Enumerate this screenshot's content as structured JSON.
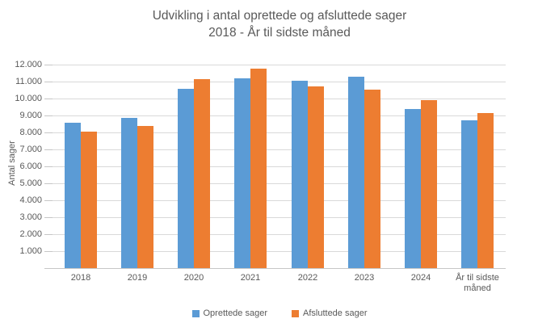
{
  "title": {
    "line1": "Udvikling i antal oprettede og afsluttede sager",
    "line2": "2018 - År til sidste måned"
  },
  "colors": {
    "series_blue": "#5B9BD5",
    "series_orange": "#ED7D31",
    "gridline": "#D9D9D9",
    "axis_line": "#C6C6C6",
    "text": "#595959"
  },
  "chart_data": {
    "type": "bar",
    "title": "Udvikling i antal oprettede og afsluttede sager 2018 - År til sidste måned",
    "categories": [
      "2018",
      "2019",
      "2020",
      "2021",
      "2022",
      "2023",
      "2024",
      "År til sidste måned"
    ],
    "series": [
      {
        "name": "Oprettede sager",
        "color": "#5B9BD5",
        "values": [
          8550,
          8850,
          10550,
          11200,
          11050,
          11300,
          9400,
          8700
        ]
      },
      {
        "name": "Afsluttede sager",
        "color": "#ED7D31",
        "values": [
          8050,
          8400,
          11150,
          11750,
          10700,
          10500,
          9900,
          9150
        ]
      }
    ],
    "xlabel": "",
    "ylabel": "Antal sager",
    "ylim": [
      0,
      12000
    ],
    "ytick_step": 1000,
    "y_ticks": [
      "1.000",
      "2.000",
      "3.000",
      "4.000",
      "5.000",
      "6.000",
      "7.000",
      "8.000",
      "9.000",
      "10.000",
      "11.000",
      "12.000"
    ],
    "grid": true,
    "legend_position": "bottom"
  }
}
